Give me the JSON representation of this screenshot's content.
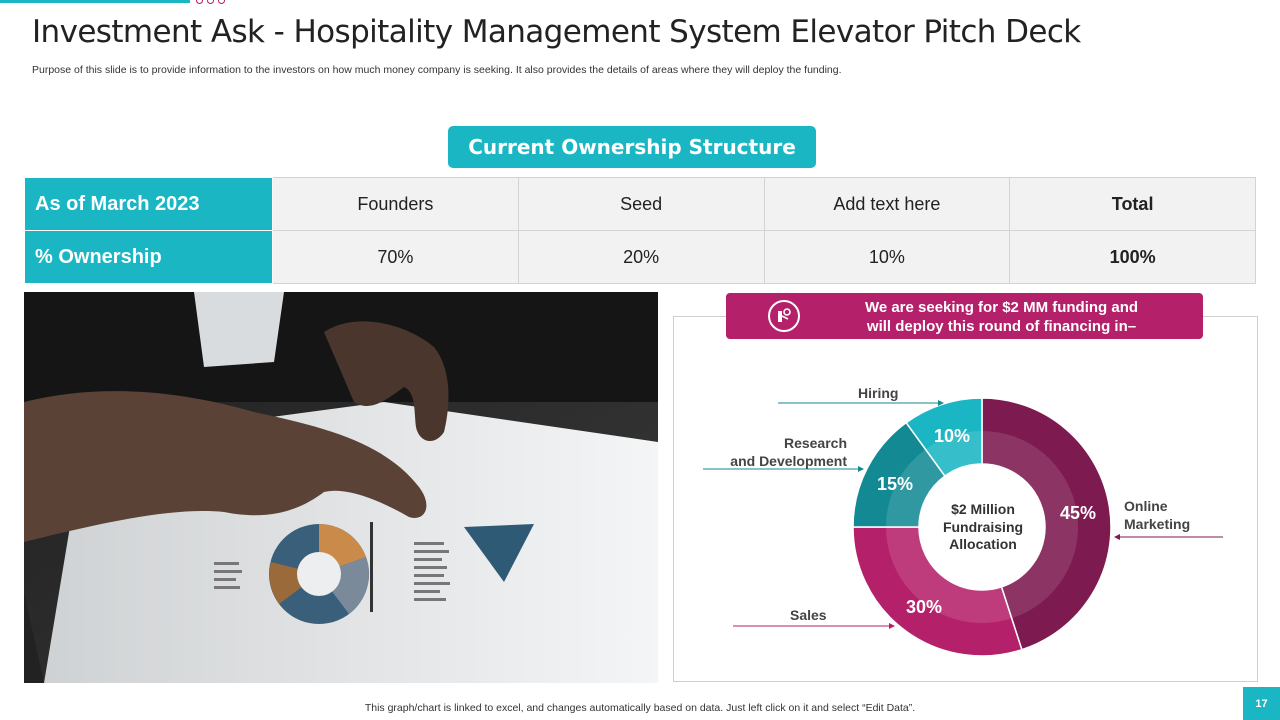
{
  "header": {
    "title": "Investment Ask - Hospitality Management System Elevator Pitch Deck",
    "subtitle": "Purpose of this slide is to provide information to the investors on how much money company is seeking. It also provides the details of areas where they will deploy the funding."
  },
  "ownership": {
    "title": "Current Ownership Structure",
    "row1": {
      "label": "As of March 2023",
      "cells": [
        "Founders",
        "Seed",
        "Add text here",
        "Total"
      ]
    },
    "row2": {
      "label": "% Ownership",
      "cells": [
        "70%",
        "20%",
        "10%",
        "100%"
      ]
    }
  },
  "banner": {
    "line1": "We are seeking for $2 MM funding and",
    "line2": "will deploy this round of financing in–",
    "icon": "money-hand-icon"
  },
  "chart_data": {
    "type": "pie",
    "center_label": [
      "$2 Million",
      "Fundraising",
      "Allocation"
    ],
    "slices": [
      {
        "name": "Online Marketing",
        "label": "Online\nMarketing",
        "value": 45,
        "text": "45%",
        "color": "#7d1a4f"
      },
      {
        "name": "Sales",
        "label": "Sales",
        "value": 30,
        "text": "30%",
        "color": "#b5206a"
      },
      {
        "name": "Research and Development",
        "label": "Research\nand Development",
        "value": 15,
        "text": "15%",
        "color": "#138a93"
      },
      {
        "name": "Hiring",
        "label": "Hiring",
        "value": 10,
        "text": "10%",
        "color": "#1bb6c4"
      }
    ]
  },
  "footer": {
    "note": "This graph/chart is linked to excel, and changes automatically based on data. Just left click on it and select “Edit Data”.",
    "page": "17"
  },
  "colors": {
    "teal": "#1bb6c4",
    "magenta": "#b5206a",
    "plum": "#7d1a4f"
  }
}
